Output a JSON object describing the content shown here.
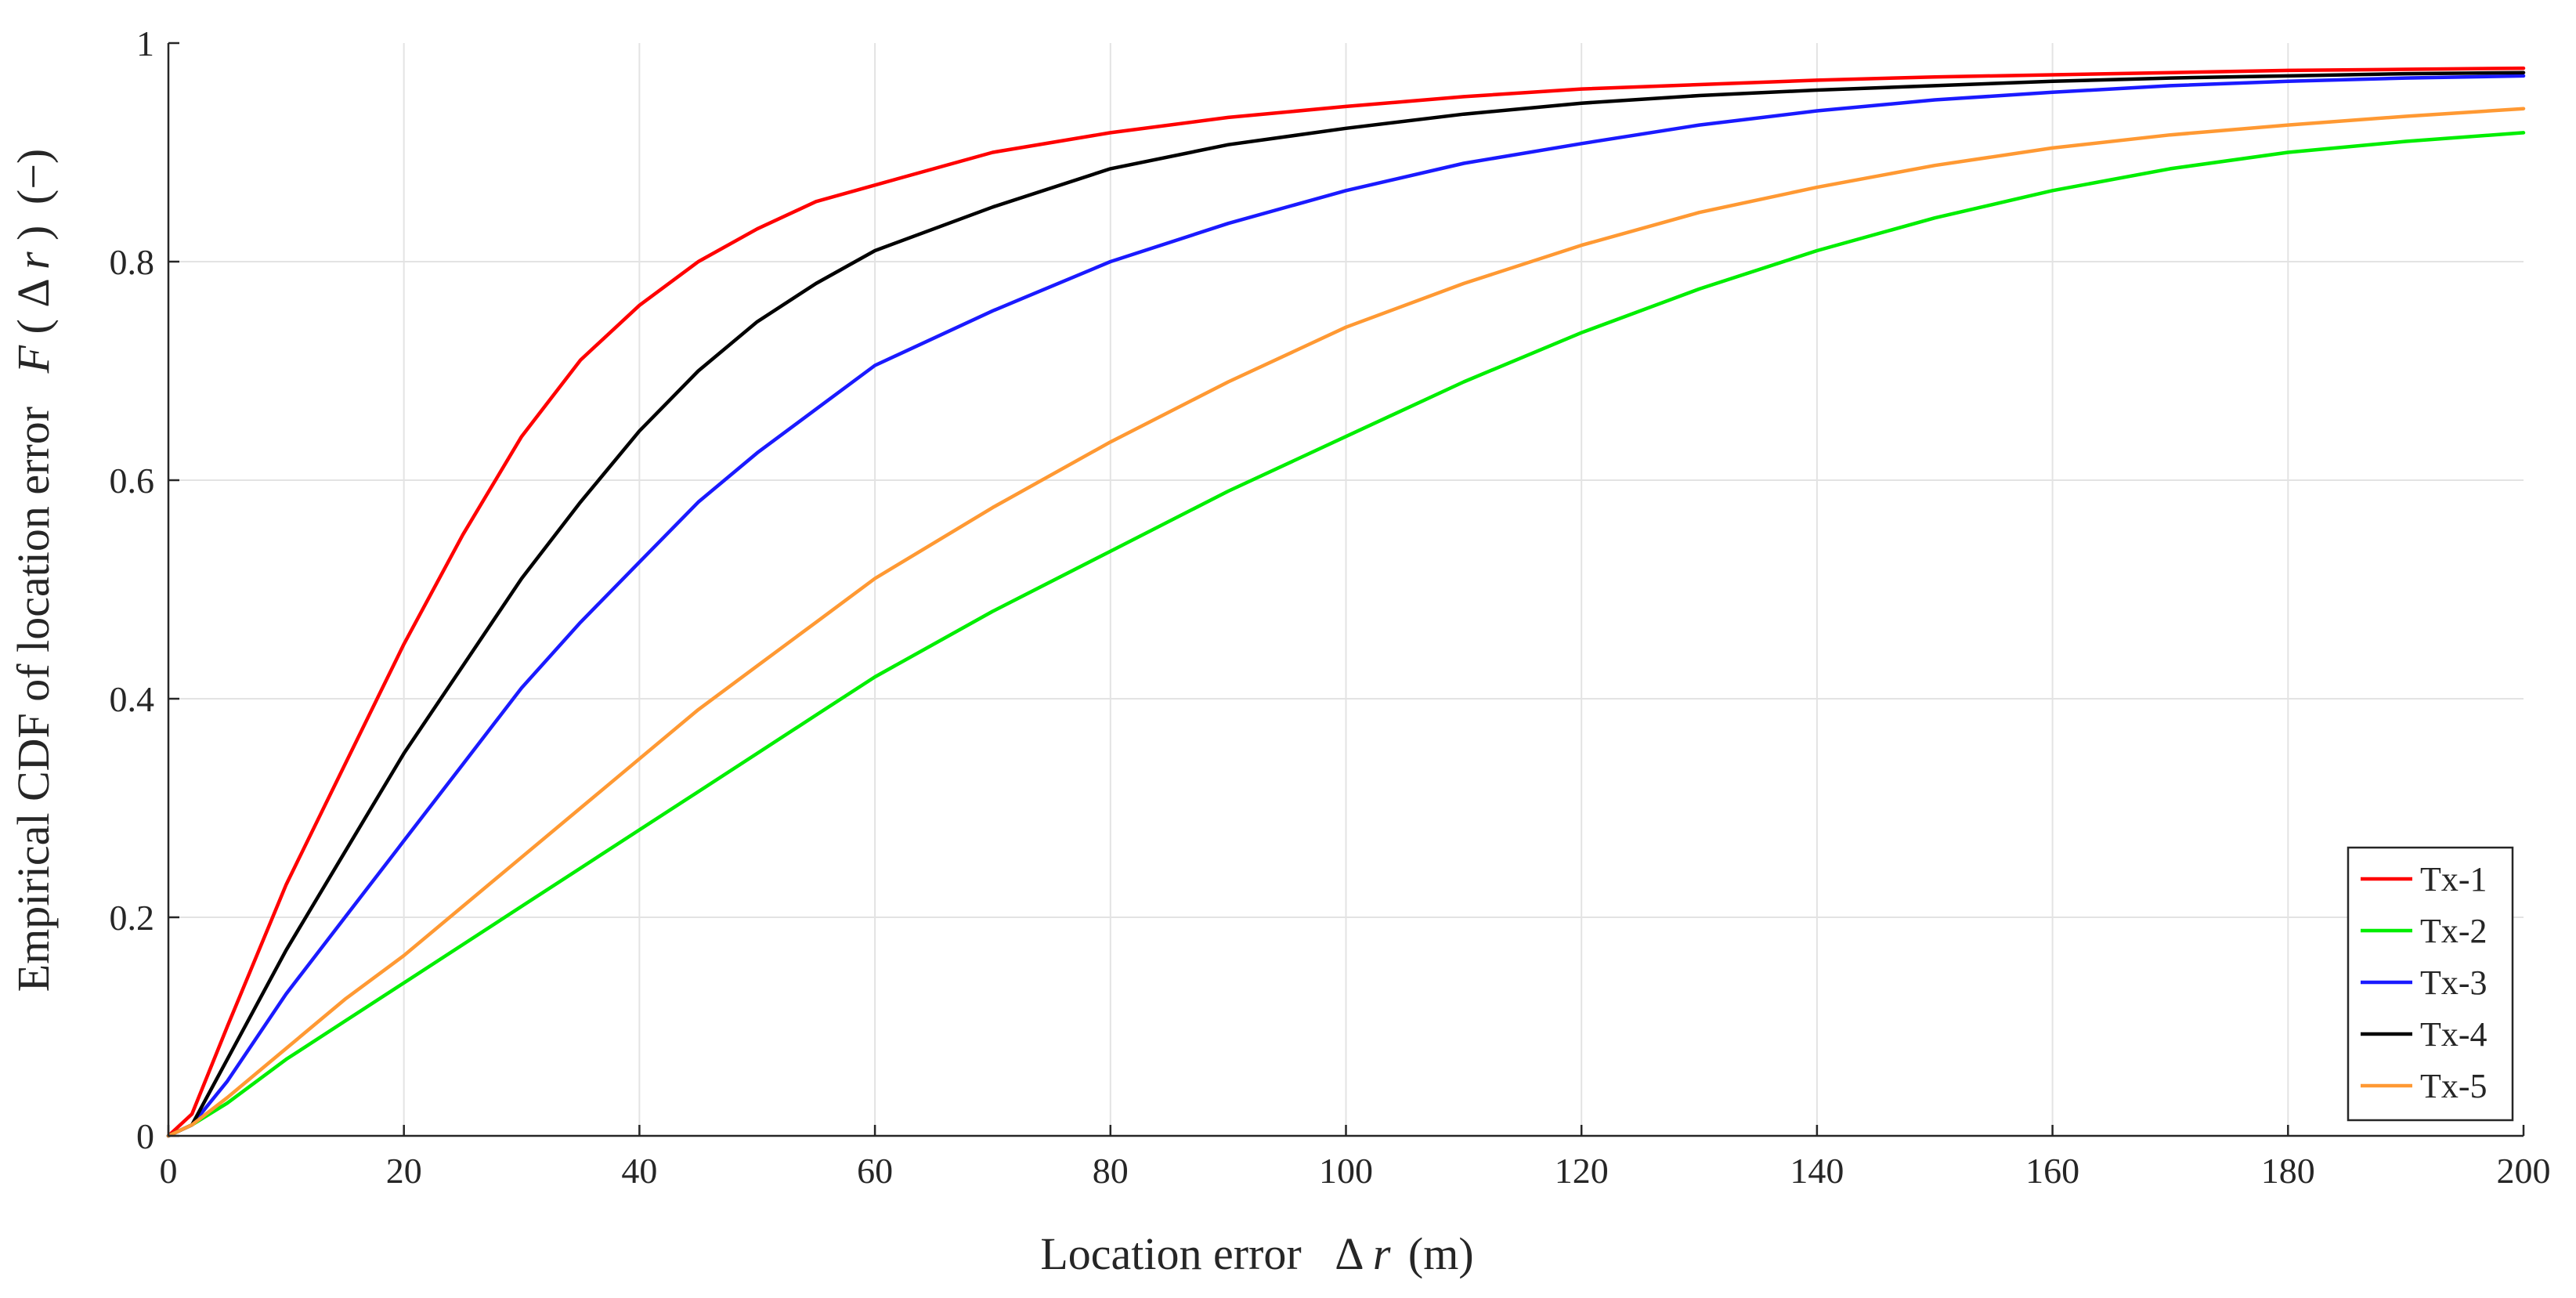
{
  "chart_data": {
    "type": "line",
    "title": "",
    "xlabel": {
      "prefix": "Location error",
      "symbol": "Δ",
      "var": "r",
      "suffix": "(m)"
    },
    "ylabel": {
      "prefix": "Empirical CDF of location error",
      "func": "F",
      "open": "(",
      "symbol": "Δ",
      "var": "r",
      "close": ")",
      "suffix": "(−)"
    },
    "xlim": [
      0,
      200
    ],
    "ylim": [
      0,
      1
    ],
    "xticks": [
      0,
      20,
      40,
      60,
      80,
      100,
      120,
      140,
      160,
      180,
      200
    ],
    "yticks": [
      0,
      0.2,
      0.4,
      0.6,
      0.8,
      1
    ],
    "xtick_labels": [
      "0",
      "20",
      "40",
      "60",
      "80",
      "100",
      "120",
      "140",
      "160",
      "180",
      "200"
    ],
    "ytick_labels": [
      "0",
      "0.2",
      "0.4",
      "0.6",
      "0.8",
      "1"
    ],
    "grid": true,
    "legend_position": "bottom-right",
    "x": [
      0,
      2,
      5,
      10,
      15,
      20,
      25,
      30,
      35,
      40,
      45,
      50,
      55,
      60,
      70,
      80,
      90,
      100,
      110,
      120,
      130,
      140,
      150,
      160,
      170,
      180,
      190,
      200
    ],
    "series": [
      {
        "name": "Tx-1",
        "color": "#ff0000",
        "values": [
          0,
          0.02,
          0.1,
          0.23,
          0.34,
          0.45,
          0.55,
          0.64,
          0.71,
          0.76,
          0.8,
          0.83,
          0.855,
          0.87,
          0.9,
          0.918,
          0.932,
          0.942,
          0.951,
          0.958,
          0.962,
          0.966,
          0.969,
          0.971,
          0.973,
          0.975,
          0.976,
          0.977
        ]
      },
      {
        "name": "Tx-2",
        "color": "#00ee00",
        "values": [
          0,
          0.01,
          0.03,
          0.07,
          0.105,
          0.14,
          0.175,
          0.21,
          0.245,
          0.28,
          0.315,
          0.35,
          0.385,
          0.42,
          0.48,
          0.535,
          0.59,
          0.64,
          0.69,
          0.735,
          0.775,
          0.81,
          0.84,
          0.865,
          0.885,
          0.9,
          0.91,
          0.918
        ]
      },
      {
        "name": "Tx-3",
        "color": "#1a1aff",
        "values": [
          0,
          0.01,
          0.05,
          0.13,
          0.2,
          0.27,
          0.34,
          0.41,
          0.47,
          0.525,
          0.58,
          0.625,
          0.665,
          0.705,
          0.755,
          0.8,
          0.835,
          0.865,
          0.89,
          0.908,
          0.925,
          0.938,
          0.948,
          0.955,
          0.961,
          0.965,
          0.968,
          0.97
        ]
      },
      {
        "name": "Tx-4",
        "color": "#000000",
        "values": [
          0,
          0.01,
          0.07,
          0.17,
          0.26,
          0.35,
          0.43,
          0.51,
          0.58,
          0.645,
          0.7,
          0.745,
          0.78,
          0.81,
          0.85,
          0.885,
          0.907,
          0.922,
          0.935,
          0.945,
          0.952,
          0.957,
          0.961,
          0.965,
          0.968,
          0.97,
          0.972,
          0.973
        ]
      },
      {
        "name": "Tx-5",
        "color": "#ff9933",
        "values": [
          0,
          0.01,
          0.035,
          0.08,
          0.125,
          0.165,
          0.21,
          0.255,
          0.3,
          0.345,
          0.39,
          0.43,
          0.47,
          0.51,
          0.575,
          0.635,
          0.69,
          0.74,
          0.78,
          0.815,
          0.845,
          0.868,
          0.888,
          0.904,
          0.916,
          0.925,
          0.933,
          0.94
        ]
      }
    ]
  }
}
